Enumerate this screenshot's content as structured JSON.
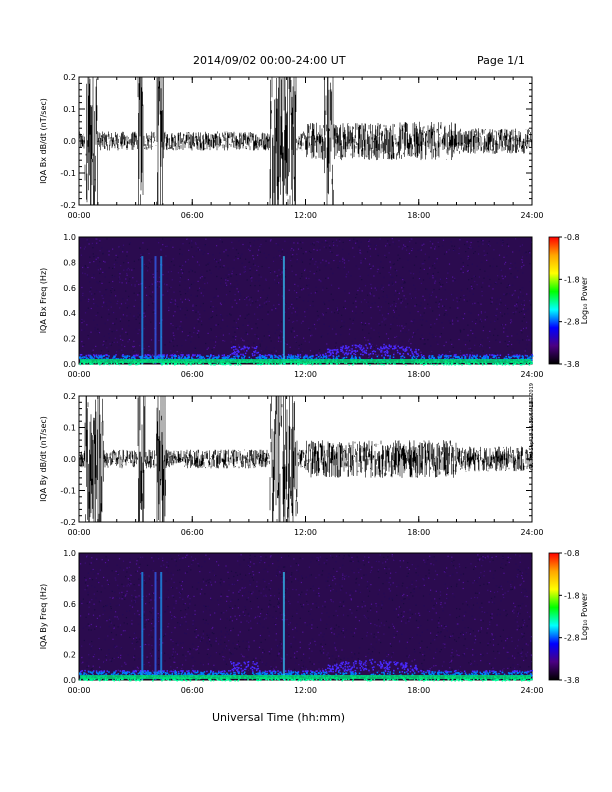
{
  "header": {
    "title": "2014/09/02  00:00-24:00 UT",
    "page": "Page 1/1"
  },
  "footer": {
    "xlabel": "Universal Time (hh:mm)",
    "side_note": "ret Thu Sep 18 11:59:44 EDT 2019"
  },
  "colors": {
    "spectrogram_background": "#2b0b4f",
    "colorbar_stops": [
      "#ff0000",
      "#ffa500",
      "#ffff00",
      "#00ff00",
      "#00ffff",
      "#0000ff",
      "#4b0082",
      "#000000"
    ]
  },
  "chart_data": [
    {
      "type": "line",
      "ylabel": "IQA Bx dB/dt (nT/sec)",
      "ylim": [
        -0.2,
        0.2
      ],
      "yticks": [
        "0.2",
        "0.1",
        "0.0",
        "-0.1",
        "-0.2"
      ],
      "xticks": [
        "00:00",
        "06:00",
        "12:00",
        "18:00",
        "24:00"
      ],
      "xlim_hours": [
        0,
        24
      ],
      "bursts": [
        {
          "start": 0.3,
          "end": 1.0,
          "amplitude": 0.2
        },
        {
          "start": 3.1,
          "end": 3.4,
          "amplitude": 0.2
        },
        {
          "start": 4.1,
          "end": 4.5,
          "amplitude": 0.2
        },
        {
          "start": 10.1,
          "end": 11.5,
          "amplitude": 0.2
        },
        {
          "start": 13.0,
          "end": 13.5,
          "amplitude": 0.2
        }
      ]
    },
    {
      "type": "heatmap",
      "ylabel": "IQA Bx Freq (Hz)",
      "ylim": [
        0.0,
        1.0
      ],
      "yticks": [
        "1.0",
        "0.8",
        "0.6",
        "0.4",
        "0.2",
        "0.0"
      ],
      "xticks": [
        "00:00",
        "06:00",
        "12:00",
        "18:00",
        "24:00"
      ],
      "colorbar_label": "Log₁₀ Power",
      "colorbar_ticks": [
        "-0.8",
        "-1.8",
        "-2.8",
        "-3.8"
      ],
      "colorbar_range": [
        -3.8,
        -0.8
      ]
    },
    {
      "type": "line",
      "ylabel": "IQA By dB/dt (nT/sec)",
      "ylim": [
        -0.2,
        0.2
      ],
      "yticks": [
        "0.2",
        "0.1",
        "0.0",
        "-0.1",
        "-0.2"
      ],
      "xticks": [
        "00:00",
        "06:00",
        "12:00",
        "18:00",
        "24:00"
      ],
      "xlim_hours": [
        0,
        24
      ],
      "bursts": [
        {
          "start": 0.3,
          "end": 1.3,
          "amplitude": 0.2
        },
        {
          "start": 3.1,
          "end": 3.5,
          "amplitude": 0.2
        },
        {
          "start": 4.1,
          "end": 4.6,
          "amplitude": 0.2
        },
        {
          "start": 10.1,
          "end": 11.6,
          "amplitude": 0.2
        }
      ]
    },
    {
      "type": "heatmap",
      "ylabel": "IQA By Freq (Hz)",
      "ylim": [
        0.0,
        1.0
      ],
      "yticks": [
        "1.0",
        "0.8",
        "0.6",
        "0.4",
        "0.2",
        "0.0"
      ],
      "xticks": [
        "00:00",
        "06:00",
        "12:00",
        "18:00",
        "24:00"
      ],
      "colorbar_label": "Log₁₀ Power",
      "colorbar_ticks": [
        "-0.8",
        "-1.8",
        "-2.8",
        "-3.8"
      ],
      "colorbar_range": [
        -3.8,
        -0.8
      ]
    }
  ]
}
